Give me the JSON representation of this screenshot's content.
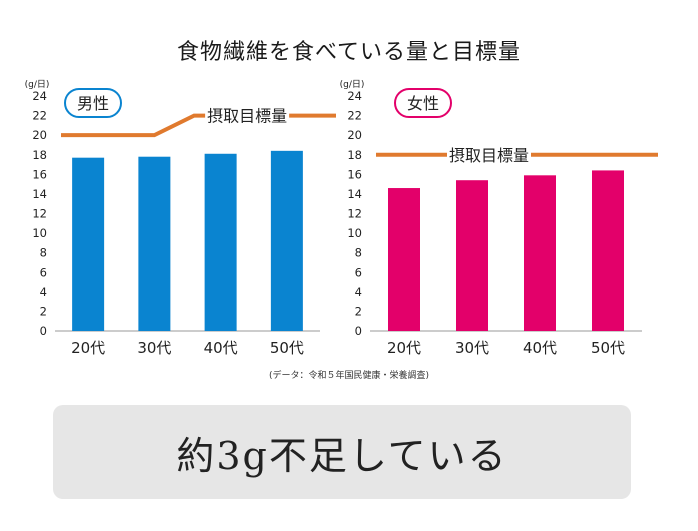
{
  "title": "食物繊維を食べている量と目標量",
  "source": "(データ：令和５年国民健康・栄養調査)",
  "summary": "約3g不足している",
  "colors": {
    "male": "#0a84d0",
    "female": "#e3006a",
    "target": "#e07a2e"
  },
  "chart_data": [
    {
      "type": "bar",
      "label": "男性",
      "unit": "(g/日)",
      "categories": [
        "20代",
        "30代",
        "40代",
        "50代"
      ],
      "values": [
        17.7,
        17.8,
        18.1,
        18.4
      ],
      "target_label": "摂取目標量",
      "target_values": [
        20,
        20,
        22,
        22
      ],
      "yticks": [
        0,
        2,
        4,
        6,
        8,
        10,
        12,
        14,
        16,
        18,
        20,
        22,
        24
      ],
      "ylim": [
        0,
        24
      ]
    },
    {
      "type": "bar",
      "label": "女性",
      "unit": "(g/日)",
      "categories": [
        "20代",
        "30代",
        "40代",
        "50代"
      ],
      "values": [
        14.6,
        15.4,
        15.9,
        16.4
      ],
      "target_label": "摂取目標量",
      "target_values": [
        18,
        18,
        18,
        18
      ],
      "yticks": [
        0,
        2,
        4,
        6,
        8,
        10,
        12,
        14,
        16,
        18,
        20,
        22,
        24
      ],
      "ylim": [
        0,
        24
      ]
    }
  ]
}
